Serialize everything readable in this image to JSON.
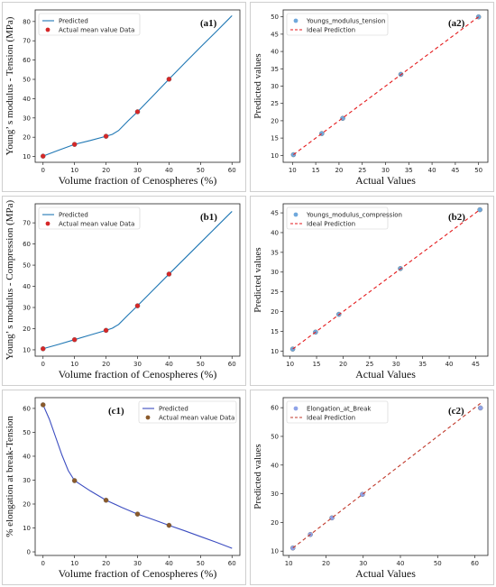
{
  "chart_data": [
    {
      "id": "a1",
      "type": "line",
      "panel_label": "(a1)",
      "xlabel": "Volume fraction of Cenospheres (%)",
      "ylabel": "Young’ s modulus - Tension (MPa)",
      "xlim": [
        -2.5,
        62.5
      ],
      "ylim": [
        7,
        86
      ],
      "xticks": [
        0,
        10,
        20,
        30,
        40,
        50,
        60
      ],
      "yticks": [
        10,
        20,
        30,
        40,
        50,
        60,
        70,
        80
      ],
      "legend_position": "top-left",
      "series": [
        {
          "name": "Predicted",
          "kind": "line",
          "color": "#1f77b4",
          "x": [
            0,
            5,
            10,
            15,
            20,
            22,
            24,
            27,
            30,
            35,
            40,
            45,
            50,
            55,
            60
          ],
          "y": [
            10.2,
            13.3,
            16.3,
            18.3,
            20.5,
            21.5,
            23.5,
            28.5,
            33.2,
            41.6,
            50.1,
            58.5,
            66.7,
            74.8,
            83
          ]
        },
        {
          "name": "Actual mean value Data",
          "kind": "scatter",
          "color": "#d62728",
          "x": [
            0,
            10,
            20,
            30,
            40
          ],
          "y": [
            10.2,
            16.3,
            20.5,
            33.2,
            50.1
          ]
        }
      ]
    },
    {
      "id": "a2",
      "type": "scatter",
      "panel_label": "(a2)",
      "xlabel": "Actual Values",
      "ylabel": "Predicted values",
      "xlim": [
        8,
        52
      ],
      "ylim": [
        8,
        52
      ],
      "xticks": [
        10,
        15,
        20,
        25,
        30,
        35,
        40,
        45,
        50
      ],
      "yticks": [
        10,
        15,
        20,
        25,
        30,
        35,
        40,
        45,
        50
      ],
      "legend_position": "top-left",
      "series": [
        {
          "name": "Youngs_modulus_tension",
          "kind": "scatter",
          "color": "#6fa8dc",
          "x": [
            10.2,
            16.3,
            20.8,
            33.3,
            50.0
          ],
          "y": [
            10.2,
            16.3,
            20.7,
            33.4,
            50.0
          ]
        },
        {
          "name": "Ideal Prediction",
          "kind": "dashed",
          "color": "#e41a1c",
          "x": [
            10.2,
            50.0
          ],
          "y": [
            10.2,
            50.0
          ]
        }
      ]
    },
    {
      "id": "b1",
      "type": "line",
      "panel_label": "(b1)",
      "xlabel": "Volume fraction of Cenospheres (%)",
      "ylabel": "Young’ s modulus - Compression (MPa)",
      "xlim": [
        -2.5,
        62.5
      ],
      "ylim": [
        7,
        79
      ],
      "xticks": [
        0,
        10,
        20,
        30,
        40,
        50,
        60
      ],
      "yticks": [
        10,
        20,
        30,
        40,
        50,
        60,
        70
      ],
      "legend_position": "top-left",
      "series": [
        {
          "name": "Predicted",
          "kind": "line",
          "color": "#1f77b4",
          "x": [
            0,
            5,
            10,
            15,
            20,
            22,
            24,
            27,
            30,
            35,
            40,
            45,
            50,
            55,
            60
          ],
          "y": [
            10.5,
            12.6,
            14.8,
            17.0,
            19.2,
            20.2,
            22.0,
            26.5,
            30.8,
            38.3,
            45.8,
            53.2,
            60.6,
            68.0,
            75.4
          ]
        },
        {
          "name": "Actual mean value Data",
          "kind": "scatter",
          "color": "#d62728",
          "x": [
            0,
            10,
            20,
            30,
            40
          ],
          "y": [
            10.5,
            14.8,
            19.2,
            30.8,
            45.8
          ]
        }
      ]
    },
    {
      "id": "b2",
      "type": "scatter",
      "panel_label": "(b2)",
      "xlabel": "Actual Values",
      "ylabel": "Predicted values",
      "xlim": [
        8.7,
        47.3
      ],
      "ylim": [
        8.7,
        47.3
      ],
      "xticks": [
        10,
        15,
        20,
        25,
        30,
        35,
        40,
        45
      ],
      "yticks": [
        10,
        15,
        20,
        25,
        30,
        35,
        40,
        45
      ],
      "legend_position": "top-left",
      "series": [
        {
          "name": "Youngs_modulus_compression",
          "kind": "scatter",
          "color": "#6fa8dc",
          "x": [
            10.5,
            14.8,
            19.2,
            30.8,
            45.8
          ],
          "y": [
            10.5,
            14.8,
            19.3,
            30.9,
            45.8
          ]
        },
        {
          "name": "Ideal Prediction",
          "kind": "dashed",
          "color": "#e41a1c",
          "x": [
            10.5,
            45.8
          ],
          "y": [
            10.5,
            45.8
          ]
        }
      ]
    },
    {
      "id": "c1",
      "type": "line",
      "panel_label": "(c1)",
      "xlabel": "Volume fraction of Cenospheres (%)",
      "ylabel": "% elongation at break-Tension",
      "xlim": [
        -2.5,
        62.5
      ],
      "ylim": [
        -1.5,
        64.5
      ],
      "xticks": [
        0,
        10,
        20,
        30,
        40,
        50,
        60
      ],
      "yticks": [
        0,
        10,
        20,
        30,
        40,
        50,
        60
      ],
      "legend_position": "top-right",
      "series": [
        {
          "name": "Predicted",
          "kind": "line",
          "color": "#3b4cc0",
          "x": [
            0,
            2,
            4,
            6,
            8,
            10,
            15,
            20,
            25,
            30,
            35,
            40,
            45,
            50,
            55,
            60
          ],
          "y": [
            61.5,
            55.5,
            48.0,
            40.5,
            34.0,
            29.8,
            25.5,
            21.6,
            18.6,
            15.8,
            13.5,
            11.1,
            8.8,
            6.4,
            4.0,
            1.5
          ]
        },
        {
          "name": "Actual mean value Data",
          "kind": "scatter",
          "color": "#8b5a2b",
          "x": [
            0,
            10,
            20,
            30,
            40
          ],
          "y": [
            61.5,
            29.8,
            21.6,
            15.8,
            11.1
          ]
        }
      ]
    },
    {
      "id": "c2",
      "type": "scatter",
      "panel_label": "(c2)",
      "xlabel": "Actual Values",
      "ylabel": "Predicted values",
      "xlim": [
        8.5,
        63.5
      ],
      "ylim": [
        8.5,
        63.5
      ],
      "xticks": [
        10,
        20,
        30,
        40,
        50,
        60
      ],
      "yticks": [
        10,
        20,
        30,
        40,
        50,
        60
      ],
      "legend_position": "top-left",
      "series": [
        {
          "name": "Elongation_at_Break",
          "kind": "scatter",
          "color": "#8fa3e8",
          "x": [
            11.1,
            15.8,
            21.6,
            29.8,
            61.5
          ],
          "y": [
            11.1,
            15.8,
            21.6,
            29.8,
            59.9
          ]
        },
        {
          "name": "Ideal Prediction",
          "kind": "dashed",
          "color": "#c0392b",
          "x": [
            11.1,
            61.5
          ],
          "y": [
            11.1,
            61.5
          ]
        }
      ]
    }
  ]
}
